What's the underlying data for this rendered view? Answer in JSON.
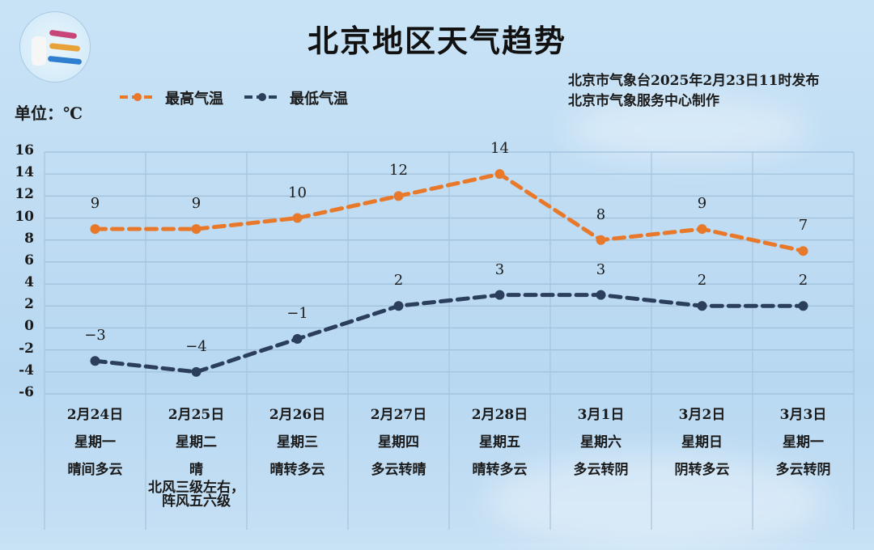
{
  "header": {
    "title": "北京地区天气趋势",
    "publisher_line1": "北京市气象台2025年2月23日11时发布",
    "publisher_line2": "北京市气象服务中心制作",
    "unit": "单位：℃"
  },
  "legend": [
    {
      "label": "最高气温",
      "color": "#e8792b"
    },
    {
      "label": "最低气温",
      "color": "#2b3f5c"
    }
  ],
  "chart_data": {
    "type": "line",
    "title": "北京地区天气趋势",
    "ylabel": "单位：℃",
    "ylim": [
      -6,
      16
    ],
    "yticks": [
      16,
      14,
      12,
      10,
      8,
      6,
      4,
      2,
      0,
      -2,
      -4,
      -6
    ],
    "grid": true,
    "legend_position": "top-left",
    "categories": [
      "2月24日",
      "2月25日",
      "2月26日",
      "2月27日",
      "2月28日",
      "3月1日",
      "3月2日",
      "3月3日"
    ],
    "weekdays": [
      "星期一",
      "星期二",
      "星期三",
      "星期四",
      "星期五",
      "星期六",
      "星期日",
      "星期一"
    ],
    "weather": [
      "晴间多云",
      "晴",
      "晴转多云",
      "多云转晴",
      "晴转多云",
      "多云转阴",
      "阴转多云",
      "多云转阴"
    ],
    "notes": [
      "",
      "北风三级左右，\n阵风五六级",
      "",
      "",
      "",
      "",
      "",
      ""
    ],
    "series": [
      {
        "name": "最高气温",
        "color": "#e8792b",
        "style": "dashed",
        "values": [
          9,
          9,
          10,
          12,
          14,
          8,
          9,
          7
        ]
      },
      {
        "name": "最低气温",
        "color": "#2b3f5c",
        "style": "dashed",
        "values": [
          -3,
          -4,
          -1,
          2,
          3,
          3,
          2,
          2
        ]
      }
    ]
  },
  "days": [
    {
      "date": "2月24日",
      "weekday": "星期一",
      "weather": "晴间多云",
      "note1": "",
      "note2": ""
    },
    {
      "date": "2月25日",
      "weekday": "星期二",
      "weather": "晴",
      "note1": "北风三级左右，",
      "note2": "阵风五六级"
    },
    {
      "date": "2月26日",
      "weekday": "星期三",
      "weather": "晴转多云",
      "note1": "",
      "note2": ""
    },
    {
      "date": "2月27日",
      "weekday": "星期四",
      "weather": "多云转晴",
      "note1": "",
      "note2": ""
    },
    {
      "date": "2月28日",
      "weekday": "星期五",
      "weather": "晴转多云",
      "note1": "",
      "note2": ""
    },
    {
      "date": "3月1日",
      "weekday": "星期六",
      "weather": "多云转阴",
      "note1": "",
      "note2": ""
    },
    {
      "date": "3月2日",
      "weekday": "星期日",
      "weather": "阴转多云",
      "note1": "",
      "note2": ""
    },
    {
      "date": "3月3日",
      "weekday": "星期一",
      "weather": "多云转阴",
      "note1": "",
      "note2": ""
    }
  ],
  "icons": {
    "logo": "meteorological-service-logo"
  }
}
